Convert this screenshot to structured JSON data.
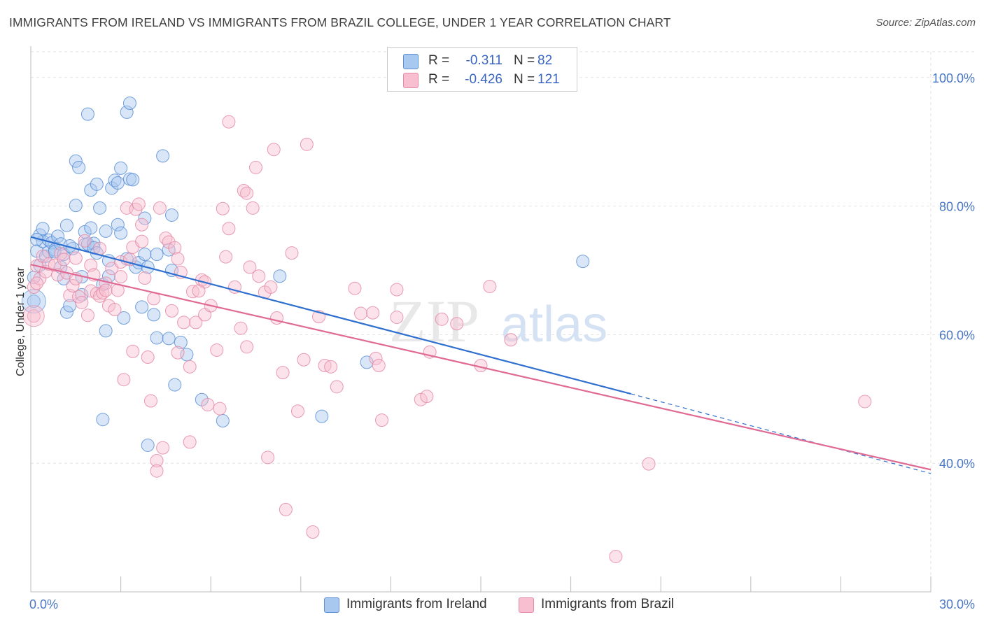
{
  "title": "IMMIGRANTS FROM IRELAND VS IMMIGRANTS FROM BRAZIL COLLEGE, UNDER 1 YEAR CORRELATION CHART",
  "source": "Source: ZipAtlas.com",
  "watermark": {
    "zip": "ZIP",
    "atlas": "atlas"
  },
  "legend": {
    "rows": [
      {
        "r_label": "R =",
        "r_value": "-0.311",
        "n_label": "N =",
        "n_value": "82",
        "color": "#a8c8f0",
        "stroke": "#5b8fd6"
      },
      {
        "r_label": "R =",
        "r_value": "-0.426",
        "n_label": "N =",
        "n_value": "121",
        "color": "#f8bfd0",
        "stroke": "#e48aa6"
      }
    ]
  },
  "bottom_legend": [
    {
      "label": "Immigrants from Ireland",
      "color": "#a8c8f0",
      "stroke": "#5b8fd6"
    },
    {
      "label": "Immigrants from Brazil",
      "color": "#f8bfd0",
      "stroke": "#e48aa6"
    }
  ],
  "chart_data": {
    "type": "scatter",
    "title": "IMMIGRANTS FROM IRELAND VS IMMIGRANTS FROM BRAZIL COLLEGE, UNDER 1 YEAR CORRELATION CHART",
    "ylabel": "College, Under 1 year",
    "xlabel": "",
    "xlim": [
      0,
      30
    ],
    "ylim": [
      20,
      104
    ],
    "x_tick_labels": [
      {
        "value": 0,
        "label": "0.0%"
      },
      {
        "value": 30,
        "label": "30.0%"
      }
    ],
    "y_tick_labels": [
      {
        "value": 40,
        "label": "40.0%"
      },
      {
        "value": 60,
        "label": "60.0%"
      },
      {
        "value": 80,
        "label": "80.0%"
      },
      {
        "value": 100,
        "label": "100.0%"
      }
    ],
    "grid": true,
    "series": [
      {
        "name": "Immigrants from Ireland",
        "color": "#5b8fd6",
        "fill": "#a8c8f0",
        "trend": {
          "x1": 0,
          "y1": 75.2,
          "x2": 20,
          "y2": 50.8,
          "dash_to_x": 30,
          "dash_to_y": 38.4,
          "line_color": "#2f6fd0"
        },
        "points": [
          [
            0.1,
            65.2
          ],
          [
            0.1,
            68.9
          ],
          [
            0.2,
            73.0
          ],
          [
            0.3,
            75.5
          ],
          [
            0.4,
            76.5
          ],
          [
            0.4,
            74.5
          ],
          [
            0.5,
            72.2
          ],
          [
            0.6,
            74.7
          ],
          [
            0.6,
            72.9
          ],
          [
            0.7,
            74.3
          ],
          [
            0.8,
            73.2
          ],
          [
            0.8,
            72.9
          ],
          [
            0.9,
            75.3
          ],
          [
            1.0,
            74.1
          ],
          [
            1.0,
            70.5
          ],
          [
            1.1,
            72.5
          ],
          [
            1.1,
            68.7
          ],
          [
            1.2,
            77.0
          ],
          [
            1.2,
            63.5
          ],
          [
            1.3,
            64.5
          ],
          [
            1.4,
            73.4
          ],
          [
            1.5,
            80.1
          ],
          [
            1.5,
            87.0
          ],
          [
            1.6,
            86.0
          ],
          [
            1.7,
            69.0
          ],
          [
            1.7,
            66.2
          ],
          [
            1.8,
            74.0
          ],
          [
            1.8,
            76.0
          ],
          [
            1.9,
            94.3
          ],
          [
            1.9,
            74.1
          ],
          [
            2.0,
            76.6
          ],
          [
            2.0,
            82.5
          ],
          [
            2.1,
            74.2
          ],
          [
            2.1,
            73.5
          ],
          [
            2.2,
            83.4
          ],
          [
            2.3,
            79.7
          ],
          [
            2.4,
            67.8
          ],
          [
            2.4,
            46.8
          ],
          [
            2.5,
            76.1
          ],
          [
            2.5,
            60.6
          ],
          [
            2.6,
            69.1
          ],
          [
            2.6,
            71.5
          ],
          [
            2.7,
            82.8
          ],
          [
            2.8,
            84.0
          ],
          [
            2.9,
            77.1
          ],
          [
            2.9,
            83.6
          ],
          [
            3.0,
            75.8
          ],
          [
            3.0,
            85.9
          ],
          [
            3.1,
            62.6
          ],
          [
            3.2,
            94.6
          ],
          [
            3.2,
            71.8
          ],
          [
            3.3,
            96.0
          ],
          [
            3.3,
            84.2
          ],
          [
            3.4,
            84.1
          ],
          [
            3.5,
            70.5
          ],
          [
            3.6,
            71.2
          ],
          [
            3.7,
            64.3
          ],
          [
            3.8,
            72.5
          ],
          [
            3.8,
            78.1
          ],
          [
            3.9,
            70.5
          ],
          [
            3.9,
            42.8
          ],
          [
            4.1,
            63.1
          ],
          [
            4.2,
            59.5
          ],
          [
            4.2,
            72.5
          ],
          [
            4.4,
            87.8
          ],
          [
            4.6,
            59.4
          ],
          [
            4.6,
            73.2
          ],
          [
            4.7,
            70.0
          ],
          [
            4.7,
            78.6
          ],
          [
            4.8,
            52.2
          ],
          [
            5.0,
            58.8
          ],
          [
            5.2,
            56.9
          ],
          [
            5.7,
            49.9
          ],
          [
            6.4,
            46.6
          ],
          [
            8.3,
            69.1
          ],
          [
            9.7,
            47.3
          ],
          [
            11.2,
            55.7
          ],
          [
            18.4,
            71.4
          ],
          [
            0.2,
            74.8
          ],
          [
            0.3,
            70.8
          ],
          [
            1.3,
            73.8
          ],
          [
            2.2,
            72.7
          ]
        ]
      },
      {
        "name": "Immigrants from Brazil",
        "color": "#e48aa6",
        "fill": "#f8bfd0",
        "trend": {
          "x1": 0,
          "y1": 70.9,
          "x2": 30,
          "y2": 39.0,
          "line_color": "#e06a94"
        },
        "points": [
          [
            0.1,
            62.9
          ],
          [
            0.1,
            67.4
          ],
          [
            0.2,
            70.7
          ],
          [
            0.3,
            68.7
          ],
          [
            0.4,
            72.2
          ],
          [
            0.5,
            69.8
          ],
          [
            0.6,
            71.0
          ],
          [
            0.8,
            70.8
          ],
          [
            0.9,
            69.3
          ],
          [
            1.0,
            72.6
          ],
          [
            1.1,
            71.7
          ],
          [
            1.2,
            69.6
          ],
          [
            1.3,
            66.1
          ],
          [
            1.4,
            67.6
          ],
          [
            1.5,
            68.7
          ],
          [
            1.6,
            65.9
          ],
          [
            1.7,
            65.0
          ],
          [
            1.8,
            74.6
          ],
          [
            1.9,
            63.0
          ],
          [
            2.0,
            66.8
          ],
          [
            2.0,
            70.8
          ],
          [
            2.1,
            69.3
          ],
          [
            2.2,
            66.4
          ],
          [
            2.3,
            73.4
          ],
          [
            2.3,
            66.0
          ],
          [
            2.4,
            66.5
          ],
          [
            2.5,
            68.0
          ],
          [
            2.5,
            66.9
          ],
          [
            2.6,
            64.5
          ],
          [
            2.7,
            70.3
          ],
          [
            2.8,
            63.9
          ],
          [
            2.9,
            66.9
          ],
          [
            3.0,
            69.0
          ],
          [
            3.0,
            71.3
          ],
          [
            3.1,
            53.0
          ],
          [
            3.2,
            79.7
          ],
          [
            3.3,
            71.7
          ],
          [
            3.4,
            73.6
          ],
          [
            3.4,
            57.4
          ],
          [
            3.5,
            79.5
          ],
          [
            3.6,
            80.3
          ],
          [
            3.7,
            77.1
          ],
          [
            3.7,
            74.5
          ],
          [
            3.8,
            68.8
          ],
          [
            3.9,
            56.5
          ],
          [
            4.0,
            49.7
          ],
          [
            4.1,
            65.6
          ],
          [
            4.2,
            40.4
          ],
          [
            4.2,
            38.8
          ],
          [
            4.3,
            79.7
          ],
          [
            4.4,
            42.4
          ],
          [
            4.5,
            75.0
          ],
          [
            4.6,
            74.4
          ],
          [
            4.7,
            63.7
          ],
          [
            4.8,
            73.5
          ],
          [
            4.9,
            71.8
          ],
          [
            5.0,
            69.7
          ],
          [
            5.1,
            61.9
          ],
          [
            5.3,
            43.3
          ],
          [
            5.3,
            55.0
          ],
          [
            5.4,
            66.7
          ],
          [
            5.5,
            61.9
          ],
          [
            5.7,
            68.5
          ],
          [
            5.8,
            63.1
          ],
          [
            5.8,
            68.2
          ],
          [
            5.9,
            49.1
          ],
          [
            6.0,
            64.5
          ],
          [
            6.2,
            57.6
          ],
          [
            6.3,
            48.5
          ],
          [
            6.4,
            79.6
          ],
          [
            6.5,
            72.1
          ],
          [
            6.6,
            93.1
          ],
          [
            6.6,
            76.5
          ],
          [
            6.8,
            67.4
          ],
          [
            7.0,
            61.0
          ],
          [
            7.1,
            82.4
          ],
          [
            7.2,
            82.0
          ],
          [
            7.3,
            70.5
          ],
          [
            7.4,
            79.7
          ],
          [
            7.5,
            86.0
          ],
          [
            7.6,
            69.1
          ],
          [
            7.8,
            66.6
          ],
          [
            7.9,
            40.9
          ],
          [
            8.0,
            67.4
          ],
          [
            8.1,
            88.8
          ],
          [
            8.2,
            62.6
          ],
          [
            8.4,
            54.1
          ],
          [
            8.5,
            32.8
          ],
          [
            8.7,
            72.7
          ],
          [
            8.9,
            48.1
          ],
          [
            9.1,
            56.1
          ],
          [
            9.2,
            89.6
          ],
          [
            9.4,
            29.3
          ],
          [
            9.6,
            62.8
          ],
          [
            9.8,
            55.2
          ],
          [
            10.0,
            55.0
          ],
          [
            10.2,
            51.9
          ],
          [
            10.8,
            67.2
          ],
          [
            11.0,
            63.3
          ],
          [
            11.4,
            63.4
          ],
          [
            11.5,
            56.3
          ],
          [
            11.6,
            55.2
          ],
          [
            11.7,
            46.7
          ],
          [
            12.2,
            67.0
          ],
          [
            12.2,
            62.7
          ],
          [
            13.0,
            49.9
          ],
          [
            13.2,
            50.4
          ],
          [
            13.3,
            57.3
          ],
          [
            13.7,
            62.4
          ],
          [
            14.2,
            61.7
          ],
          [
            15.0,
            55.2
          ],
          [
            15.3,
            67.5
          ],
          [
            16.0,
            59.2
          ],
          [
            19.5,
            25.5
          ],
          [
            20.6,
            39.9
          ],
          [
            27.8,
            49.6
          ],
          [
            0.2,
            68.0
          ],
          [
            1.5,
            71.9
          ],
          [
            4.9,
            57.2
          ],
          [
            5.6,
            66.8
          ],
          [
            7.2,
            58.1
          ]
        ]
      }
    ]
  }
}
